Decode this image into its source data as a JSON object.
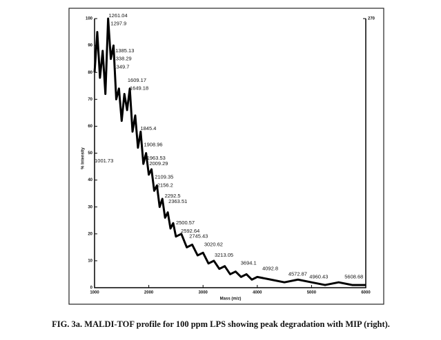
{
  "chart_data": {
    "type": "line",
    "caption": "FIG. 3a. MALDI-TOF profile for 100 ppm LPS showing peak degradation with MIP (right).",
    "xlabel": "Mass (m/z)",
    "ylabel": "% Intensity",
    "color": "#000000",
    "x": [
      1000,
      1050,
      1100,
      1150,
      1200,
      1250,
      1300,
      1350,
      1400,
      1450,
      1500,
      1550,
      1600,
      1650,
      1700,
      1750,
      1800,
      1850,
      1900,
      1950,
      2000,
      2050,
      2100,
      2150,
      2200,
      2250,
      2300,
      2350,
      2400,
      2450,
      2500,
      2600,
      2700,
      2800,
      2900,
      3000,
      3100,
      3200,
      3300,
      3400,
      3500,
      3600,
      3700,
      3800,
      3900,
      4000,
      4250,
      4500,
      4750,
      5000,
      5250,
      5500,
      5750,
      6000
    ],
    "values": [
      80,
      95,
      78,
      88,
      72,
      100,
      85,
      90,
      70,
      74,
      62,
      72,
      66,
      74,
      58,
      64,
      52,
      58,
      46,
      50,
      42,
      44,
      36,
      38,
      30,
      33,
      26,
      28,
      22,
      24,
      19,
      20,
      15,
      16,
      12,
      13,
      9,
      10,
      7,
      8,
      5,
      6,
      4,
      5,
      3,
      4,
      3,
      2,
      3,
      2,
      1,
      2,
      1,
      1
    ],
    "xlim": [
      1000,
      6000
    ],
    "ylim": [
      0,
      100
    ],
    "xticks": [
      1000,
      2000,
      3000,
      4000,
      5000,
      6000
    ],
    "yticks": [
      0,
      10,
      20,
      30,
      40,
      50,
      60,
      70,
      80,
      90,
      100
    ],
    "y2lim": [
      0,
      270
    ],
    "y2ticks": [
      270
    ],
    "peak_labels": {
      "x": [
        1261.04,
        1297.9,
        1385.13,
        1338.29,
        1349.7,
        1609.17,
        1649.18,
        1845.4,
        1908.96,
        1963.53,
        2009.29,
        2109.35,
        2156.2,
        2292.5,
        2363.51,
        2500.57,
        2592.64,
        2745.43,
        3020.62,
        3213.05,
        3694.1,
        4092.8,
        4572.87,
        4960.43,
        5608.68,
        1001.73
      ],
      "y": [
        100,
        97,
        87,
        84,
        81,
        76,
        73,
        58,
        52,
        47,
        45,
        40,
        37,
        33,
        31,
        23,
        20,
        18,
        15,
        11,
        8,
        6,
        4,
        3,
        3,
        46
      ]
    }
  }
}
